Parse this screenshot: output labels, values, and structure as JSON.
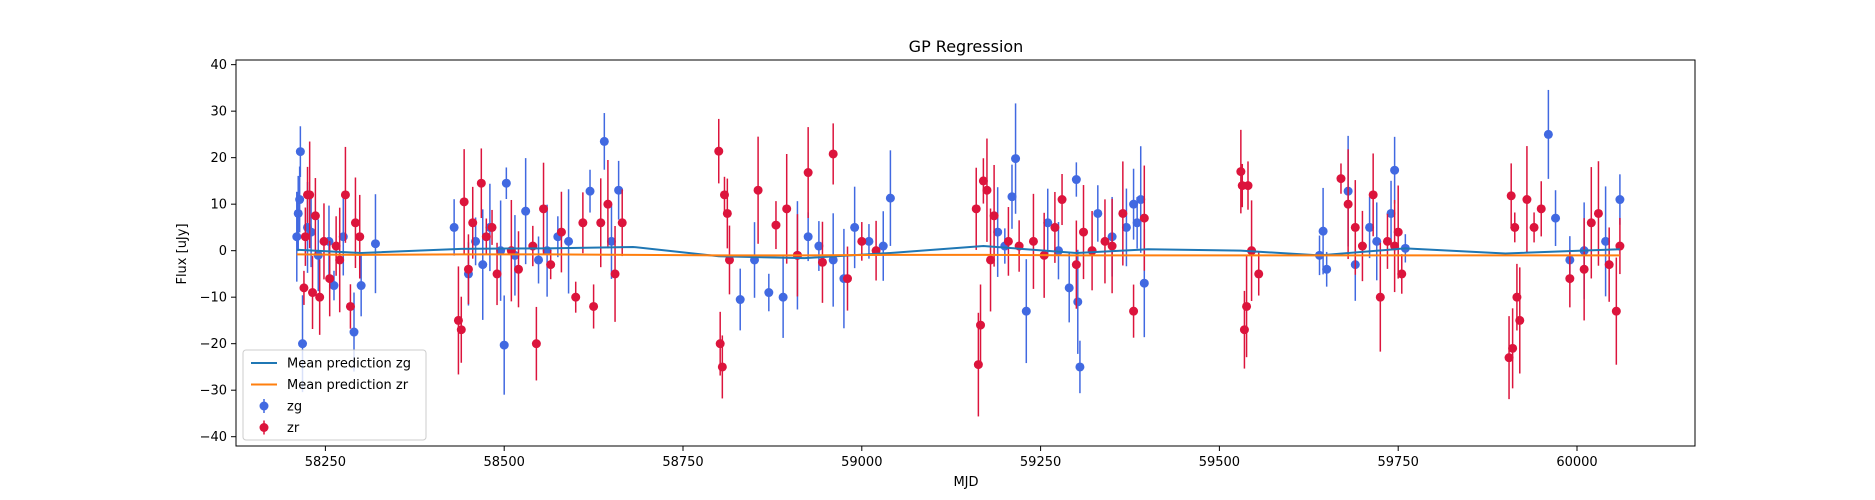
{
  "chart_data": {
    "type": "scatter",
    "title": "GP Regression",
    "xlabel": "MJD",
    "ylabel": "Flux [uJy]",
    "xlim": [
      58125,
      60165
    ],
    "ylim": [
      -42,
      41
    ],
    "xticks": [
      58250,
      58500,
      58750,
      59000,
      59250,
      59500,
      59750,
      60000
    ],
    "yticks": [
      -40,
      -30,
      -20,
      -10,
      0,
      10,
      20,
      30,
      40
    ],
    "legend": {
      "position": "lower-left",
      "entries": [
        "Mean prediction zg",
        "Mean prediction zr",
        "zg",
        "zr"
      ]
    },
    "colors": {
      "zg": "#4169e1",
      "zr": "#dc143c",
      "line_zg": "#1f77b4",
      "line_zr": "#ff7f0e"
    },
    "mean_prediction_zg": {
      "name": "Mean prediction zg",
      "x": [
        58210,
        58300,
        58440,
        58560,
        58680,
        58800,
        58920,
        59040,
        59170,
        59300,
        59400,
        59530,
        59640,
        59760,
        59900,
        60060
      ],
      "y": [
        0.2,
        -0.5,
        0.4,
        0.5,
        0.8,
        -1.2,
        -1.6,
        -0.5,
        1.0,
        -0.5,
        0.3,
        0.0,
        -1.0,
        0.5,
        -0.6,
        0.3
      ]
    },
    "mean_prediction_zr": {
      "name": "Mean prediction zr",
      "x": [
        58210,
        58300,
        58440,
        58560,
        58680,
        58800,
        58920,
        59040,
        59170,
        59300,
        59400,
        59530,
        59640,
        59760,
        59900,
        60060
      ],
      "y": [
        -0.8,
        -0.9,
        -0.8,
        -0.8,
        -0.9,
        -1.0,
        -1.0,
        -0.9,
        -0.9,
        -1.0,
        -1.0,
        -1.0,
        -1.0,
        -1.0,
        -1.0,
        -1.0
      ]
    },
    "zg": {
      "name": "zg",
      "x": [
        58210,
        58212,
        58214,
        58215,
        58218,
        58225,
        58230,
        58240,
        58255,
        58262,
        58275,
        58290,
        58300,
        58320,
        58430,
        58450,
        58460,
        58470,
        58480,
        58495,
        58500,
        58503,
        58515,
        58530,
        58548,
        58560,
        58575,
        58590,
        58620,
        58640,
        58650,
        58660,
        58830,
        58850,
        58870,
        58890,
        58910,
        58925,
        58940,
        58960,
        58975,
        58990,
        59010,
        59030,
        59040,
        59190,
        59200,
        59210,
        59215,
        59230,
        59260,
        59275,
        59290,
        59300,
        59302,
        59305,
        59330,
        59350,
        59370,
        59380,
        59385,
        59390,
        59395,
        59640,
        59645,
        59650,
        59680,
        59690,
        59710,
        59720,
        59740,
        59745,
        59760,
        59960,
        59970,
        59990,
        60010,
        60040,
        60060
      ],
      "y": [
        3,
        8,
        11,
        21.3,
        -20,
        5,
        4,
        -1,
        2,
        -7.5,
        3,
        -17.5,
        -7.5,
        1.5,
        5,
        -5,
        2,
        -3,
        5,
        0,
        -20.3,
        14.5,
        -1,
        8.5,
        -2,
        0,
        3,
        2,
        12.8,
        23.5,
        2,
        13,
        -10.5,
        -2,
        -9,
        -10,
        -1,
        3,
        1,
        -2,
        -6,
        5,
        2,
        1,
        11.3,
        4,
        1,
        11.6,
        19.8,
        -13,
        6,
        0,
        -8,
        15.3,
        -11,
        -25,
        8,
        3,
        5,
        10,
        6,
        11,
        -7,
        -1,
        4.2,
        -4,
        12.8,
        -3,
        5,
        2,
        8,
        17.3,
        0.5,
        25,
        7,
        -2,
        0,
        2,
        11
      ]
    },
    "zr": {
      "name": "zr",
      "x": [
        58220,
        58222,
        58225,
        58228,
        58232,
        58236,
        58242,
        58248,
        58256,
        58265,
        58270,
        58278,
        58285,
        58292,
        58298,
        58436,
        58440,
        58444,
        58450,
        58456,
        58468,
        58475,
        58483,
        58490,
        58510,
        58520,
        58540,
        58545,
        58555,
        58565,
        58580,
        58600,
        58610,
        58625,
        58635,
        58645,
        58655,
        58665,
        58800,
        58802,
        58805,
        58808,
        58812,
        58815,
        58855,
        58880,
        58895,
        58910,
        58925,
        58945,
        58960,
        58980,
        59000,
        59020,
        59160,
        59163,
        59166,
        59170,
        59175,
        59180,
        59185,
        59205,
        59220,
        59240,
        59255,
        59270,
        59280,
        59300,
        59310,
        59322,
        59340,
        59350,
        59365,
        59380,
        59395,
        59530,
        59532,
        59535,
        59538,
        59540,
        59545,
        59555,
        59670,
        59680,
        59690,
        59700,
        59715,
        59725,
        59735,
        59745,
        59750,
        59755,
        59905,
        59908,
        59910,
        59913,
        59916,
        59920,
        59930,
        59940,
        59950,
        59990,
        60010,
        60020,
        60030,
        60045,
        60055,
        60060
      ],
      "y": [
        -8,
        3,
        12,
        12,
        -9,
        7.5,
        -10,
        2,
        -6,
        1,
        -2,
        12,
        -12,
        6,
        3,
        -15,
        -17,
        10.5,
        -4,
        6,
        14.5,
        3,
        5,
        -5,
        0,
        -4,
        1,
        -20,
        9,
        -3,
        4,
        -10,
        6,
        -12,
        6,
        10,
        -5,
        6,
        21.4,
        -20,
        -25,
        12,
        8,
        -2,
        13,
        5.5,
        9,
        -1,
        16.8,
        -2.5,
        20.8,
        -6,
        2,
        0,
        9,
        -24.5,
        -16,
        15,
        13,
        -2,
        7.5,
        2,
        1,
        2,
        -1,
        5,
        11,
        -3,
        4,
        0,
        2,
        1,
        8,
        -13,
        7,
        17,
        14,
        -17,
        -12,
        14,
        0,
        -5,
        15.5,
        10,
        5,
        1,
        12,
        -10,
        2,
        1,
        4,
        -5,
        -23,
        11.8,
        -21,
        5,
        -10,
        -15,
        11,
        5,
        9,
        -6,
        -4,
        6,
        8,
        -3,
        -13,
        1
      ]
    }
  }
}
